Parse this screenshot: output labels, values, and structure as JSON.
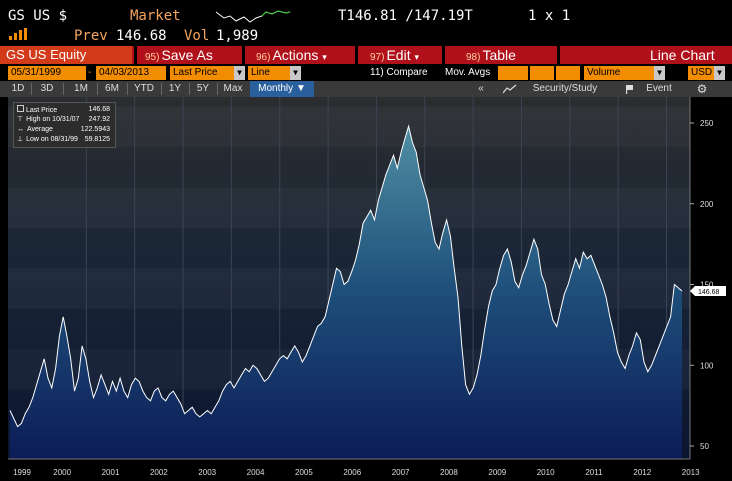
{
  "header": {
    "ticker": "GS US $",
    "market_label": "Market",
    "prev_label": "Prev",
    "prev_value": "146.68",
    "vol_label": "Vol",
    "vol_value": "1,989",
    "bid_ask": "T146.81 /147.19T",
    "size": "1 x 1"
  },
  "toolbar": {
    "security": "GS US Equity",
    "save_tag": "95)",
    "save_label": "Save As",
    "actions_tag": "96)",
    "actions_label": "Actions",
    "edit_tag": "97)",
    "edit_label": "Edit",
    "table_tag": "98)",
    "table_label": "Table",
    "chart_type": "Line Chart"
  },
  "inputs": {
    "start_date": "05/31/1999",
    "end_date": "04/03/2013",
    "price_field": "Last Price",
    "style": "Line",
    "compare_label": "11) Compare",
    "mov_avgs_label": "Mov. Avgs",
    "volume": "Volume",
    "currency": "USD"
  },
  "range": {
    "buttons": [
      "1D",
      "3D",
      "1M",
      "6M",
      "YTD",
      "1Y",
      "5Y",
      "Max"
    ],
    "periodicity": "Monthly",
    "security_study": "Security/Study",
    "event": "Event"
  },
  "legend": {
    "rows": [
      {
        "label": "Last Price",
        "value": "146.68"
      },
      {
        "label": "High on 10/31/07",
        "value": "247.92"
      },
      {
        "label": "Average",
        "value": "122.5943"
      },
      {
        "label": "Low on 08/31/99",
        "value": "59.8125"
      }
    ]
  },
  "colors": {
    "accent_orange": "#f28c00",
    "toolbar_red": "#b0101a",
    "selected_blue": "#2a5f9e",
    "line": "#ffffff"
  },
  "chart_data": {
    "type": "area",
    "title": "",
    "xlabel": "",
    "ylabel": "",
    "ylim": [
      40,
      260
    ],
    "yticks": [
      50,
      100,
      150,
      200,
      250
    ],
    "x_labels": [
      "1999",
      "2000",
      "2001",
      "2002",
      "2003",
      "2004",
      "2005",
      "2006",
      "2007",
      "2008",
      "2009",
      "2010",
      "2011",
      "2012",
      "2013"
    ],
    "last_price_tag": "146.68",
    "series": [
      {
        "values": [
          72,
          67,
          62,
          64,
          70,
          74,
          80,
          88,
          96,
          104,
          92,
          86,
          98,
          118,
          130,
          118,
          104,
          84,
          92,
          112,
          104,
          90,
          80,
          86,
          94,
          88,
          82,
          90,
          84,
          92,
          84,
          80,
          88,
          92,
          90,
          84,
          80,
          78,
          84,
          86,
          80,
          78,
          82,
          84,
          80,
          76,
          70,
          72,
          74,
          70,
          68,
          70,
          72,
          70,
          74,
          78,
          84,
          88,
          90,
          86,
          90,
          94,
          98,
          96,
          100,
          98,
          94,
          90,
          92,
          96,
          100,
          104,
          106,
          104,
          108,
          112,
          108,
          102,
          106,
          112,
          118,
          124,
          126,
          130,
          140,
          150,
          160,
          158,
          150,
          152,
          158,
          165,
          175,
          188,
          192,
          196,
          190,
          202,
          210,
          218,
          224,
          230,
          222,
          232,
          240,
          248,
          238,
          232,
          218,
          210,
          202,
          188,
          176,
          172,
          182,
          190,
          180,
          160,
          142,
          112,
          88,
          82,
          86,
          94,
          106,
          122,
          136,
          146,
          150,
          160,
          168,
          172,
          164,
          152,
          148,
          156,
          162,
          170,
          178,
          172,
          156,
          150,
          138,
          128,
          124,
          134,
          144,
          150,
          158,
          166,
          160,
          170,
          166,
          168,
          162,
          156,
          150,
          142,
          130,
          120,
          108,
          102,
          98,
          106,
          112,
          120,
          116,
          102,
          96,
          100,
          106,
          112,
          118,
          124,
          130,
          150,
          148,
          146
        ]
      }
    ]
  }
}
